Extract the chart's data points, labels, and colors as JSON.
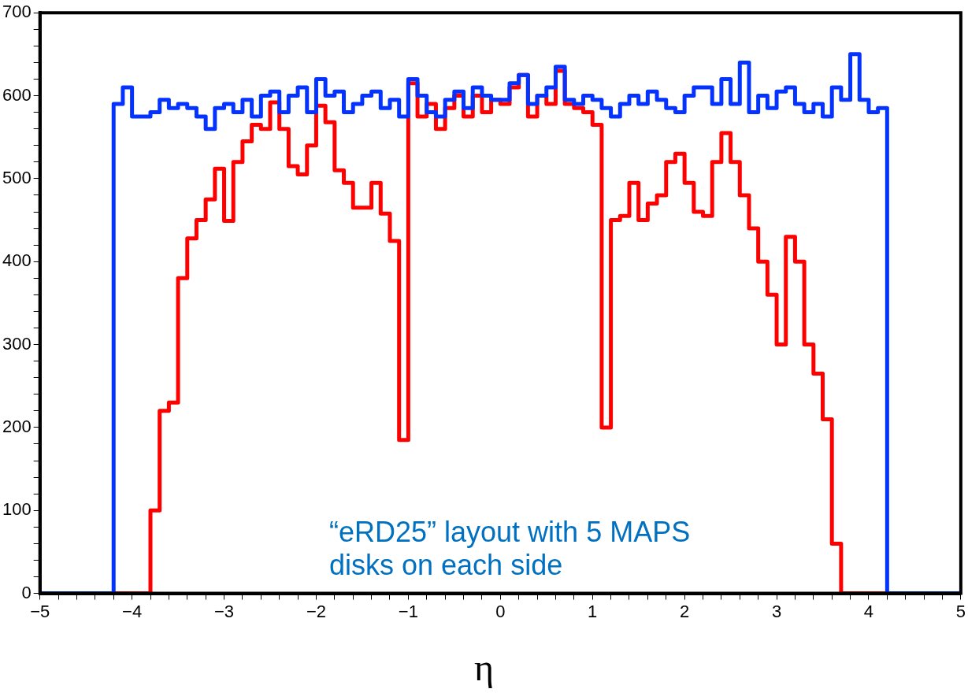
{
  "chart_data": {
    "type": "histogram",
    "xlabel": "η",
    "bins": [
      -5,
      -4.9,
      -4.8,
      -4.7,
      -4.6,
      -4.5,
      -4.4,
      -4.3,
      -4.2,
      -4.1,
      -4,
      -3.9,
      -3.8,
      -3.7,
      -3.6,
      -3.5,
      -3.4,
      -3.3,
      -3.2,
      -3.1,
      -3,
      -2.9,
      -2.8,
      -2.7,
      -2.6,
      -2.5,
      -2.4,
      -2.3,
      -2.2,
      -2.1,
      -2,
      -1.9,
      -1.8,
      -1.7,
      -1.6,
      -1.5,
      -1.4,
      -1.3,
      -1.2,
      -1.1,
      -1,
      -0.9,
      -0.8,
      -0.7,
      -0.6,
      -0.5,
      -0.4,
      -0.3,
      -0.2,
      -0.1,
      0,
      0.1,
      0.2,
      0.3,
      0.4,
      0.5,
      0.6,
      0.7,
      0.8,
      0.9,
      1,
      1.1,
      1.2,
      1.3,
      1.4,
      1.5,
      1.6,
      1.7,
      1.8,
      1.9,
      2,
      2.1,
      2.2,
      2.3,
      2.4,
      2.5,
      2.6,
      2.7,
      2.8,
      2.9,
      3,
      3.1,
      3.2,
      3.3,
      3.4,
      3.5,
      3.6,
      3.7,
      3.8,
      3.9,
      4,
      4.1,
      4.2,
      4.3,
      4.4,
      4.5,
      4.6,
      4.7,
      4.8,
      4.9,
      5
    ],
    "series": [
      {
        "color": "#0433ff",
        "values": [
          0,
          0,
          0,
          0,
          0,
          0,
          0,
          0,
          590,
          610,
          575,
          575,
          580,
          595,
          585,
          590,
          585,
          575,
          560,
          585,
          590,
          580,
          595,
          575,
          600,
          605,
          580,
          600,
          610,
          580,
          620,
          600,
          605,
          580,
          590,
          600,
          605,
          585,
          595,
          575,
          620,
          600,
          580,
          575,
          595,
          605,
          585,
          610,
          600,
          595,
          595,
          615,
          625,
          590,
          600,
          610,
          635,
          595,
          590,
          600,
          595,
          585,
          575,
          590,
          600,
          590,
          605,
          595,
          585,
          580,
          600,
          610,
          610,
          590,
          620,
          590,
          640,
          580,
          600,
          585,
          605,
          610,
          590,
          580,
          590,
          575,
          610,
          595,
          650,
          595,
          580,
          585,
          0,
          0,
          0,
          0,
          0,
          0,
          0,
          0
        ]
      },
      {
        "color": "#ff0000",
        "values": [
          0,
          0,
          0,
          0,
          0,
          0,
          0,
          0,
          0,
          0,
          0,
          0,
          100,
          220,
          230,
          380,
          428,
          450,
          475,
          512,
          449,
          520,
          545,
          565,
          560,
          592,
          560,
          515,
          505,
          540,
          588,
          568,
          510,
          495,
          465,
          465,
          495,
          458,
          425,
          185,
          615,
          575,
          590,
          560,
          585,
          600,
          575,
          600,
          580,
          595,
          590,
          610,
          625,
          575,
          600,
          590,
          630,
          590,
          585,
          580,
          565,
          200,
          450,
          455,
          495,
          450,
          470,
          480,
          520,
          530,
          495,
          460,
          455,
          520,
          555,
          520,
          480,
          440,
          400,
          360,
          300,
          430,
          400,
          300,
          265,
          210,
          60,
          0,
          0,
          0,
          0,
          0,
          0,
          0,
          0,
          0,
          0,
          0,
          0,
          0
        ]
      }
    ],
    "xlim": [
      -5,
      5
    ],
    "xticks": [
      -5,
      {
        "value": -4.8,
        "label": null
      },
      {
        "value": -4.6,
        "label": null
      },
      {
        "value": -4.4,
        "label": null
      },
      {
        "value": -4.2,
        "label": null
      },
      -4,
      {
        "value": -3.8,
        "label": null
      },
      {
        "value": -3.6,
        "label": null
      },
      {
        "value": -3.4,
        "label": null
      },
      {
        "value": -3.2,
        "label": null
      },
      -3,
      {
        "value": -2.8,
        "label": null
      },
      {
        "value": -2.6,
        "label": null
      },
      {
        "value": -2.4,
        "label": null
      },
      {
        "value": -2.2,
        "label": null
      },
      -2,
      {
        "value": -1.8,
        "label": null
      },
      {
        "value": -1.6,
        "label": null
      },
      {
        "value": -1.4,
        "label": null
      },
      {
        "value": -1.2,
        "label": null
      },
      -1,
      {
        "value": -0.8,
        "label": null
      },
      {
        "value": -0.6,
        "label": null
      },
      {
        "value": -0.4,
        "label": null
      },
      {
        "value": -0.2,
        "label": null
      },
      0,
      {
        "value": 0.2,
        "label": null
      },
      {
        "value": 0.4,
        "label": null
      },
      {
        "value": 0.6,
        "label": null
      },
      {
        "value": 0.8,
        "label": null
      },
      1,
      {
        "value": 1.2,
        "label": null
      },
      {
        "value": 1.4,
        "label": null
      },
      {
        "value": 1.6,
        "label": null
      },
      {
        "value": 1.8,
        "label": null
      },
      2,
      {
        "value": 2.2,
        "label": null
      },
      {
        "value": 2.4,
        "label": null
      },
      {
        "value": 2.6,
        "label": null
      },
      {
        "value": 2.8,
        "label": null
      },
      3,
      {
        "value": 3.2,
        "label": null
      },
      {
        "value": 3.4,
        "label": null
      },
      {
        "value": 3.6,
        "label": null
      },
      {
        "value": 3.8,
        "label": null
      },
      4,
      {
        "value": 4.2,
        "label": null
      },
      {
        "value": 4.4,
        "label": null
      },
      {
        "value": 4.6,
        "label": null
      },
      {
        "value": 4.8,
        "label": null
      },
      5
    ],
    "ylim": [
      0,
      700
    ],
    "yticks": [
      0,
      {
        "value": 20,
        "label": null
      },
      {
        "value": 40,
        "label": null
      },
      {
        "value": 60,
        "label": null
      },
      {
        "value": 80,
        "label": null
      },
      100,
      {
        "value": 120,
        "label": null
      },
      {
        "value": 140,
        "label": null
      },
      {
        "value": 160,
        "label": null
      },
      {
        "value": 180,
        "label": null
      },
      200,
      {
        "value": 220,
        "label": null
      },
      {
        "value": 240,
        "label": null
      },
      {
        "value": 260,
        "label": null
      },
      {
        "value": 280,
        "label": null
      },
      300,
      {
        "value": 320,
        "label": null
      },
      {
        "value": 340,
        "label": null
      },
      {
        "value": 360,
        "label": null
      },
      {
        "value": 380,
        "label": null
      },
      400,
      {
        "value": 420,
        "label": null
      },
      {
        "value": 440,
        "label": null
      },
      {
        "value": 460,
        "label": null
      },
      {
        "value": 480,
        "label": null
      },
      500,
      {
        "value": 520,
        "label": null
      },
      {
        "value": 540,
        "label": null
      },
      {
        "value": 560,
        "label": null
      },
      {
        "value": 580,
        "label": null
      },
      600,
      {
        "value": 620,
        "label": null
      },
      {
        "value": 640,
        "label": null
      },
      {
        "value": 660,
        "label": null
      },
      {
        "value": 680,
        "label": null
      },
      700
    ],
    "annotations": [
      "“eRD25” layout with 5 MAPS disks on each side"
    ]
  }
}
